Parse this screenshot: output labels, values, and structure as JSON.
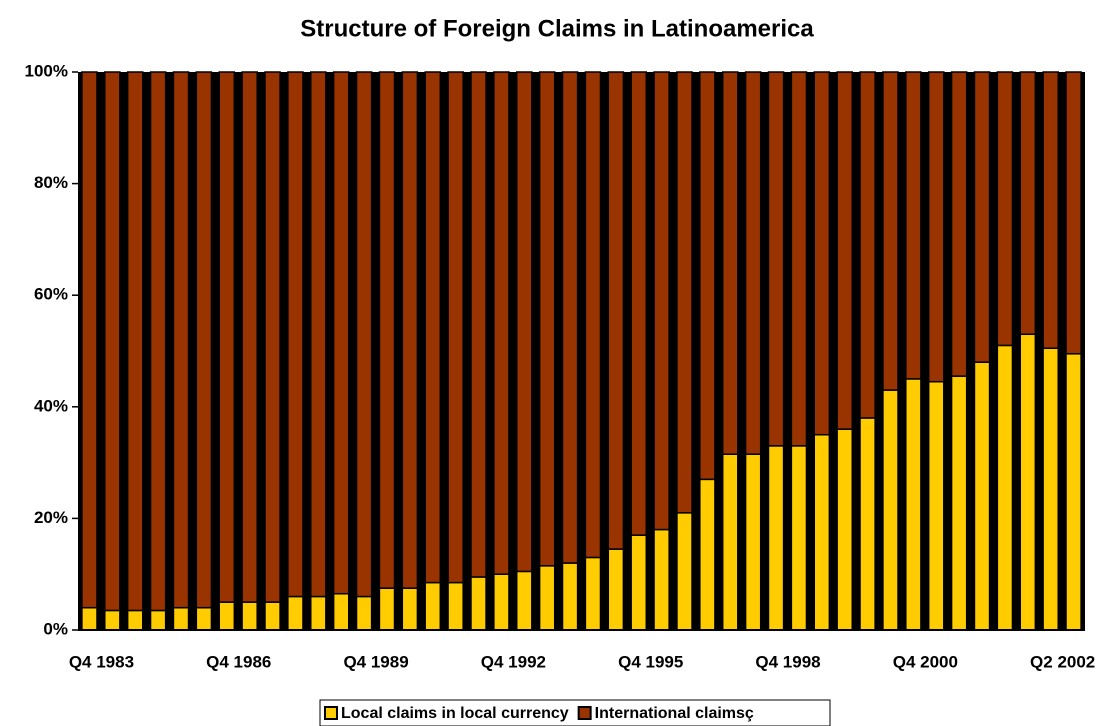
{
  "chart_data": {
    "type": "stacked_bar",
    "title": "Structure of Foreign Claims in Latinoamerica",
    "categories": [
      "Q4 1983",
      null,
      null,
      null,
      null,
      null,
      "Q4 1986",
      null,
      null,
      null,
      null,
      null,
      "Q4 1989",
      null,
      null,
      null,
      null,
      null,
      "Q4 1992",
      null,
      null,
      null,
      null,
      null,
      "Q4 1995",
      null,
      null,
      null,
      null,
      null,
      "Q4 1998",
      null,
      null,
      null,
      null,
      null,
      "Q4 2000",
      null,
      null,
      null,
      null,
      null,
      "Q2 2002",
      null
    ],
    "series": [
      {
        "name": "Local claims in local currency",
        "color": "#ffcc00",
        "values": [
          4,
          3.5,
          3.5,
          3.5,
          4,
          4,
          5,
          5,
          5,
          6,
          6,
          6.5,
          6,
          7.5,
          7.5,
          8.5,
          8.5,
          9.5,
          10,
          10.5,
          11.5,
          12,
          13,
          14.5,
          17,
          18,
          21,
          27,
          31.5,
          31.5,
          33,
          33,
          35,
          36,
          38,
          43,
          45,
          44.5,
          45.5,
          48,
          51,
          53,
          50.5,
          49.5
        ]
      },
      {
        "name": "International claimsç",
        "color": "#993300",
        "values": [
          96,
          96.5,
          96.5,
          96.5,
          96,
          96,
          95,
          95,
          95,
          94,
          94,
          93.5,
          94,
          92.5,
          92.5,
          91.5,
          91.5,
          90.5,
          90,
          89.5,
          88.5,
          88,
          87,
          85.5,
          83,
          82,
          79,
          73,
          68.5,
          68.5,
          67,
          67,
          65,
          64,
          62,
          57,
          55,
          55.5,
          54.5,
          52,
          49,
          47,
          49.5,
          50.5
        ]
      }
    ],
    "ylim": [
      0,
      100
    ],
    "yticks": [
      {
        "value": 0,
        "label": "0%"
      },
      {
        "value": 20,
        "label": "20%"
      },
      {
        "value": 40,
        "label": "40%"
      },
      {
        "value": 60,
        "label": "60%"
      },
      {
        "value": 80,
        "label": "80%"
      },
      {
        "value": 100,
        "label": "100%"
      }
    ]
  }
}
